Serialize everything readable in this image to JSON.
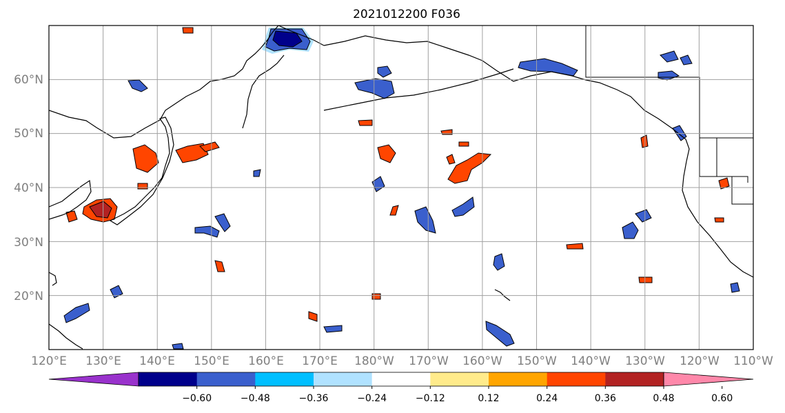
{
  "map": {
    "title": "2021012200 F036",
    "x_ticks": [
      "120°E",
      "130°E",
      "140°E",
      "150°E",
      "160°E",
      "170°E",
      "180°W",
      "170°W",
      "160°W",
      "150°W",
      "140°W",
      "130°W",
      "120°W",
      "110°W"
    ],
    "y_ticks": [
      "20°N",
      "30°N",
      "40°N",
      "50°N",
      "60°N"
    ],
    "lon_range": [
      120,
      250
    ],
    "lat_range": [
      10,
      70
    ]
  },
  "colorbar": {
    "labels": [
      "−0.60",
      "−0.48",
      "−0.36",
      "−0.24",
      "−0.12",
      "0.12",
      "0.24",
      "0.36",
      "0.48",
      "0.60"
    ],
    "colors": [
      "#9932cc",
      "#00008b",
      "#3a5fcd",
      "#00bfff",
      "#b0e2ff",
      "#ffffff",
      "#ffeb8b",
      "#ffa500",
      "#ff4500",
      "#b22222",
      "#ff88aa"
    ]
  },
  "colors": {
    "coast": "#000000",
    "grid": "#a0a0a0",
    "neg_strong": "#00008b",
    "neg_mid": "#3a5fcd",
    "neg_light": "#00bfff",
    "neg_faint": "#b0e2ff",
    "pos_faint": "#ffeb8b",
    "pos_light": "#ffa500",
    "pos_mid": "#ff4500",
    "pos_strong": "#b22222"
  }
}
